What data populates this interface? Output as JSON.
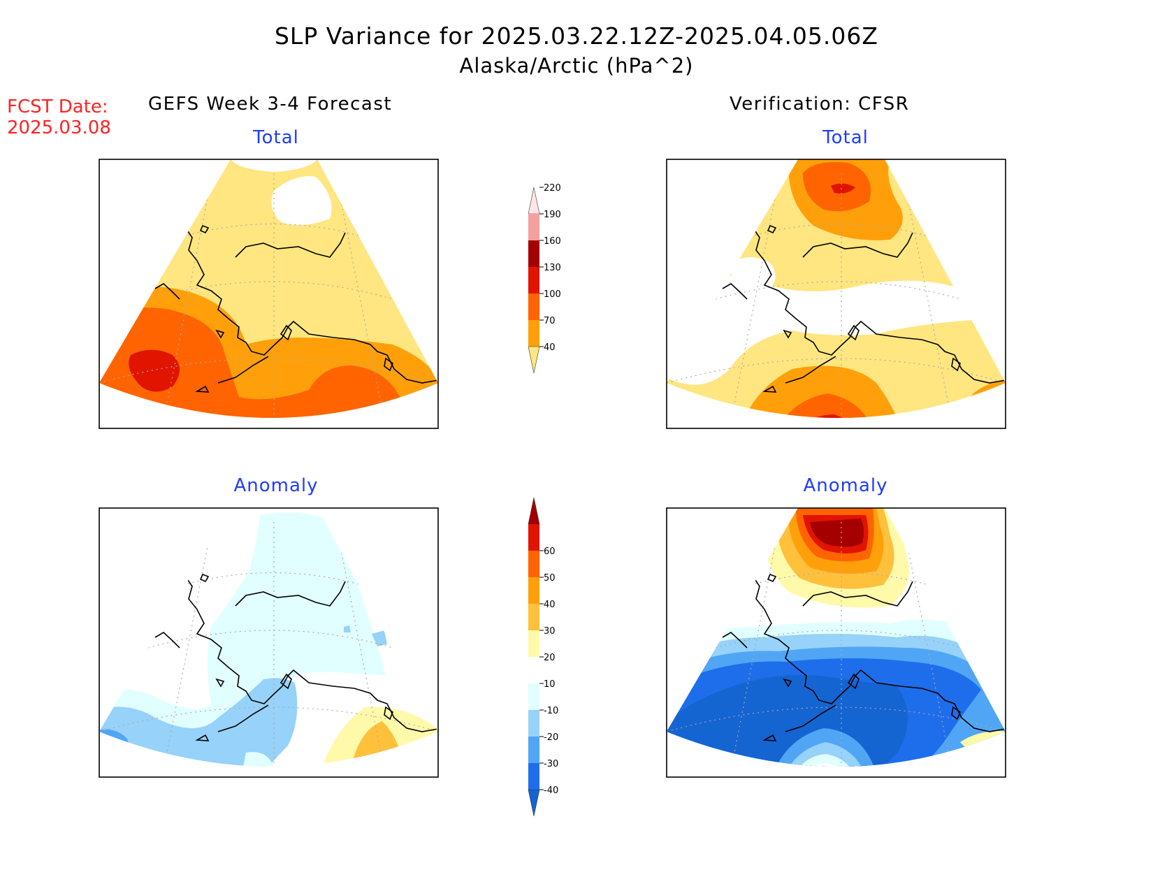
{
  "title": {
    "line1": "SLP Variance for 2025.03.22.12Z-2025.04.05.06Z",
    "line2": "Alaska/Arctic (hPa^2)"
  },
  "forecast_date": {
    "label": "FCST Date:",
    "value": "2025.03.08"
  },
  "panels": {
    "forecast": {
      "header": "GEFS Week 3-4 Forecast",
      "total_title": "Total",
      "anomaly_title": "Anomaly"
    },
    "verification": {
      "header": "Verification: CFSR",
      "total_title": "Total",
      "anomaly_title": "Anomaly"
    }
  },
  "colorbars": {
    "total": {
      "levels": [
        "40",
        "70",
        "100",
        "130",
        "160",
        "190",
        "220"
      ],
      "colors": [
        "#ffe680",
        "#ffa00a",
        "#ff6400",
        "#e11400",
        "#a50000",
        "#f4a0a0",
        "#ffe6e6"
      ]
    },
    "anomaly": {
      "levels": [
        "-40",
        "-30",
        "-20",
        "-10",
        "10",
        "20",
        "30",
        "40",
        "50",
        "60"
      ],
      "colors": [
        "#1464d2",
        "#1e6eeb",
        "#50a5f5",
        "#96d2fa",
        "#e1ffff",
        "#ffffff",
        "#fffaaa",
        "#ffc03c",
        "#ffa00a",
        "#ff6400",
        "#e11400",
        "#a50000"
      ]
    }
  }
}
